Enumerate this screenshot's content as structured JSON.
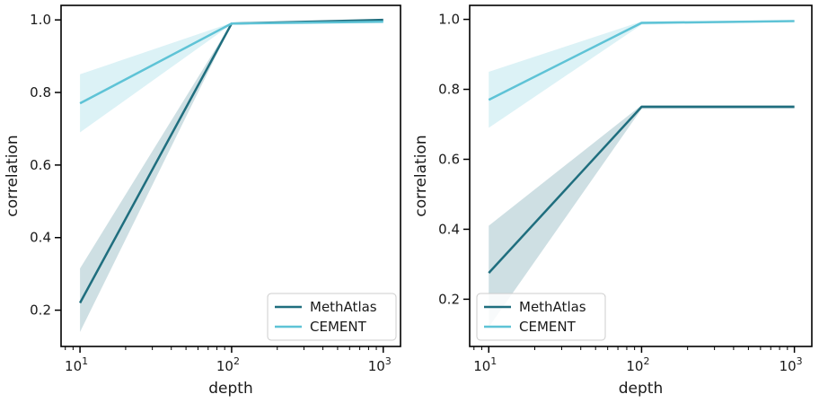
{
  "chart_data": [
    {
      "type": "line",
      "xscale": "log",
      "x": [
        10,
        100,
        1000
      ],
      "xlim": [
        7.5,
        1300
      ],
      "ylim": [
        0.1,
        1.04
      ],
      "xlabel": "depth",
      "ylabel": "correlation",
      "xticks": [
        {
          "value": 10,
          "base": "10",
          "exp": "1"
        },
        {
          "value": 100,
          "base": "10",
          "exp": "2"
        },
        {
          "value": 1000,
          "base": "10",
          "exp": "3"
        }
      ],
      "yticks": [
        {
          "value": 0.2,
          "label": "0.2"
        },
        {
          "value": 0.4,
          "label": "0.4"
        },
        {
          "value": 0.6,
          "label": "0.6"
        },
        {
          "value": 0.8,
          "label": "0.8"
        },
        {
          "value": 1.0,
          "label": "1.0"
        }
      ],
      "legend": "lower-right",
      "grid": false,
      "series": [
        {
          "name": "MethAtlas",
          "color": "#1f6e7e",
          "values": [
            0.22,
            0.99,
            1.0
          ],
          "lower": [
            0.14,
            0.988,
            0.997
          ],
          "upper": [
            0.315,
            0.992,
            1.0
          ]
        },
        {
          "name": "CEMENT",
          "color": "#5ec3d6",
          "values": [
            0.77,
            0.99,
            0.995
          ],
          "lower": [
            0.69,
            0.988,
            0.993
          ],
          "upper": [
            0.85,
            0.992,
            0.997
          ]
        }
      ]
    },
    {
      "type": "line",
      "xscale": "log",
      "x": [
        10,
        100,
        1000
      ],
      "xlim": [
        7.5,
        1300
      ],
      "ylim": [
        0.065,
        1.04
      ],
      "xlabel": "depth",
      "ylabel": "correlation",
      "xticks": [
        {
          "value": 10,
          "base": "10",
          "exp": "1"
        },
        {
          "value": 100,
          "base": "10",
          "exp": "2"
        },
        {
          "value": 1000,
          "base": "10",
          "exp": "3"
        }
      ],
      "yticks": [
        {
          "value": 0.2,
          "label": "0.2"
        },
        {
          "value": 0.4,
          "label": "0.4"
        },
        {
          "value": 0.6,
          "label": "0.6"
        },
        {
          "value": 0.8,
          "label": "0.8"
        },
        {
          "value": 1.0,
          "label": "1.0"
        }
      ],
      "legend": "lower-left",
      "grid": false,
      "series": [
        {
          "name": "MethAtlas",
          "color": "#1f6e7e",
          "values": [
            0.275,
            0.75,
            0.75
          ],
          "lower": [
            0.12,
            0.744,
            0.745
          ],
          "upper": [
            0.41,
            0.755,
            0.755
          ]
        },
        {
          "name": "CEMENT",
          "color": "#5ec3d6",
          "values": [
            0.77,
            0.99,
            0.995
          ],
          "lower": [
            0.69,
            0.985,
            0.993
          ],
          "upper": [
            0.85,
            0.994,
            0.997
          ]
        }
      ]
    }
  ]
}
